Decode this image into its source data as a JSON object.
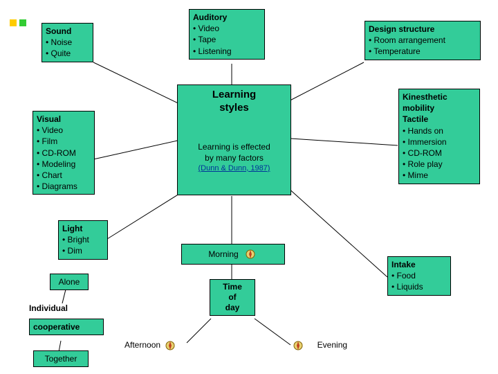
{
  "colors": {
    "box_bg": "#33cc99",
    "border": "#000000",
    "bullet1": "#ffcc00",
    "bullet2": "#33cc33",
    "link": "#003399"
  },
  "central": {
    "title": "Learning styles",
    "sub1": "Learning is effected",
    "sub2": "by many factors",
    "citation": "(Dunn & Dunn, 1987)"
  },
  "sound": {
    "title": "Sound",
    "items": [
      "Noise",
      "Quite"
    ]
  },
  "auditory": {
    "title": "Auditory",
    "items": [
      "Video",
      "Tape",
      "Listening"
    ]
  },
  "design": {
    "title": "Design structure",
    "items": [
      "Room arrangement",
      "Temperature"
    ]
  },
  "visual": {
    "title": "Visual",
    "items": [
      "Video",
      "Film",
      "CD-ROM",
      "Modeling",
      "Chart",
      "Diagrams"
    ]
  },
  "kinesthetic": {
    "title1": "Kinesthetic",
    "title2": "mobility",
    "title3": "Tactile",
    "items": [
      "Hands on",
      "Immersion",
      "CD-ROM",
      "Role play",
      "Mime"
    ]
  },
  "light": {
    "title": "Light",
    "items": [
      "Bright",
      "Dim"
    ]
  },
  "intake": {
    "title": "Intake",
    "items": [
      "Food",
      "Liquids"
    ]
  },
  "morning": {
    "label": "Morning"
  },
  "timeofday": {
    "l1": "Time",
    "l2": "of",
    "l3": "day"
  },
  "alone": "Alone",
  "individual": "Individual",
  "cooperative": "cooperative",
  "together": "Together",
  "afternoon": "Afternoon",
  "evening": "Evening"
}
